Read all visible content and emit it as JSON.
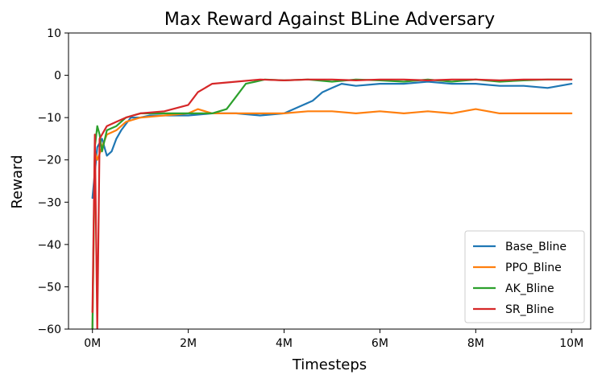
{
  "chart_data": {
    "type": "line",
    "title": "Max Reward Against BLine Adversary",
    "xlabel": "Timesteps",
    "ylabel": "Reward",
    "xlim": [
      -0.5,
      10.4
    ],
    "ylim": [
      -60,
      10
    ],
    "xticks": [
      0,
      2,
      4,
      6,
      8,
      10
    ],
    "xtick_labels": [
      "0M",
      "2M",
      "4M",
      "6M",
      "8M",
      "10M"
    ],
    "yticks": [
      10,
      0,
      -10,
      -20,
      -30,
      -40,
      -50,
      -60
    ],
    "ytick_labels": [
      "10",
      "0",
      "−10",
      "−20",
      "−30",
      "−40",
      "−50",
      "−60"
    ],
    "grid": false,
    "legend_position": "lower-right",
    "series": [
      {
        "name": "Base_Bline",
        "color": "#1f77b4",
        "x": [
          0,
          0.1,
          0.2,
          0.3,
          0.4,
          0.5,
          0.6,
          0.8,
          1.0,
          1.2,
          1.5,
          2.0,
          2.5,
          3.0,
          3.5,
          4.0,
          4.2,
          4.4,
          4.6,
          4.8,
          5.0,
          5.2,
          5.5,
          6.0,
          6.5,
          7.0,
          7.5,
          8.0,
          8.5,
          9.0,
          9.5,
          10.0
        ],
        "y": [
          -29,
          -17,
          -15,
          -19,
          -18,
          -15,
          -13,
          -10,
          -10,
          -9.5,
          -9.5,
          -9.5,
          -9,
          -9,
          -9.5,
          -9,
          -8,
          -7,
          -6,
          -4,
          -3,
          -2,
          -2.5,
          -2,
          -2,
          -1.5,
          -2,
          -2,
          -2.5,
          -2.5,
          -3,
          -2
        ]
      },
      {
        "name": "PPO_Bline",
        "color": "#ff7f0e",
        "x": [
          0,
          0.05,
          0.1,
          0.2,
          0.3,
          0.5,
          0.7,
          1.0,
          1.5,
          2.0,
          2.2,
          2.5,
          3.0,
          3.5,
          4.0,
          4.5,
          5.0,
          5.5,
          6.0,
          6.5,
          7.0,
          7.5,
          8.0,
          8.5,
          9.0,
          9.5,
          10.0
        ],
        "y": [
          -60,
          -18,
          -20,
          -17,
          -14,
          -13,
          -11,
          -10,
          -9.5,
          -9,
          -8,
          -9,
          -9,
          -9,
          -9,
          -8.5,
          -8.5,
          -9,
          -8.5,
          -9,
          -8.5,
          -9,
          -8,
          -9,
          -9,
          -9,
          -9
        ]
      },
      {
        "name": "AK_Bline",
        "color": "#2ca02c",
        "x": [
          0,
          0.05,
          0.1,
          0.15,
          0.2,
          0.3,
          0.5,
          0.7,
          1.0,
          1.5,
          2.0,
          2.5,
          2.8,
          3.0,
          3.2,
          3.4,
          3.6,
          4.0,
          4.5,
          5.0,
          5.5,
          6.0,
          6.5,
          7.0,
          7.5,
          8.0,
          8.5,
          9.0,
          9.5,
          10.0
        ],
        "y": [
          -60,
          -17,
          -12,
          -14,
          -18,
          -13,
          -12,
          -10,
          -9,
          -9,
          -9,
          -9,
          -8,
          -5,
          -2,
          -1.5,
          -1,
          -1.2,
          -1,
          -1.5,
          -1,
          -1.2,
          -1.5,
          -1,
          -1.5,
          -1,
          -1.5,
          -1.2,
          -1,
          -1
        ]
      },
      {
        "name": "SR_Bline",
        "color": "#d62728",
        "x": [
          0,
          0.05,
          0.1,
          0.15,
          0.2,
          0.3,
          0.5,
          0.7,
          1.0,
          1.5,
          2.0,
          2.2,
          2.5,
          3.0,
          3.5,
          4.0,
          4.5,
          5.0,
          5.5,
          6.0,
          6.5,
          7.0,
          7.5,
          8.0,
          8.5,
          9.0,
          9.5,
          10.0
        ],
        "y": [
          -56,
          -14,
          -60,
          -15,
          -14,
          -12,
          -11,
          -10,
          -9,
          -8.5,
          -7,
          -4,
          -2,
          -1.5,
          -1,
          -1.2,
          -1,
          -1,
          -1.2,
          -1,
          -1,
          -1.2,
          -1,
          -1,
          -1.2,
          -1,
          -1,
          -1
        ]
      }
    ]
  }
}
